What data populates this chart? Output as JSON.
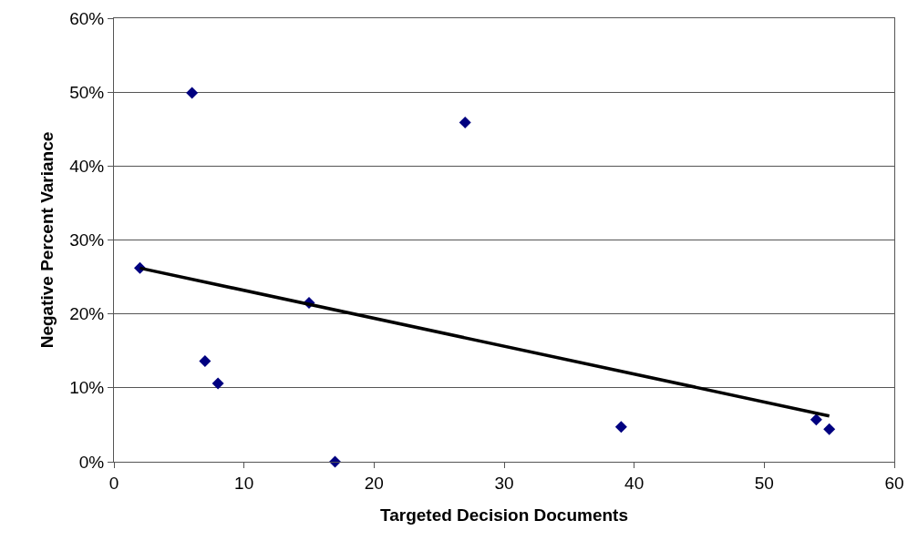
{
  "chart_data": {
    "type": "scatter",
    "xlabel": "Targeted Decision Documents",
    "ylabel": "Negative Percent Variance",
    "series": [
      {
        "color": "#000080",
        "marker": "diamond",
        "x": [
          6,
          27,
          2,
          15,
          7,
          8,
          17,
          39,
          54,
          55
        ],
        "values": [
          49.9,
          45.9,
          26.2,
          21.5,
          13.6,
          10.6,
          0,
          4.7,
          5.7,
          4.4
        ]
      },
      {
        "type": "line",
        "color": "#000000",
        "marker": "none",
        "x": [
          2,
          55
        ],
        "values": [
          26.2,
          6.2
        ]
      }
    ],
    "xlim": [
      0,
      60
    ],
    "xticks": [
      0,
      10,
      20,
      30,
      40,
      50,
      60
    ],
    "ylim": [
      0,
      60
    ],
    "yticks": [
      {
        "value": 0,
        "label": "0%"
      },
      {
        "value": 10,
        "label": "10%"
      },
      {
        "value": 20,
        "label": "20%"
      },
      {
        "value": 30,
        "label": "30%"
      },
      {
        "value": 40,
        "label": "40%"
      },
      {
        "value": 50,
        "label": "50%"
      },
      {
        "value": 60,
        "label": "60%"
      }
    ],
    "grid": "y",
    "legend": false
  }
}
